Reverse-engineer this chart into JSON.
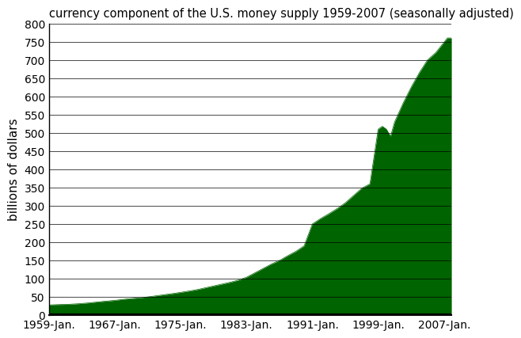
{
  "title": "currency component of the U.S. money supply 1959-2007 (seasonally adjusted)",
  "ylabel": "billions of dollars",
  "fill_color": "#006400",
  "background_color": "#ffffff",
  "ylim": [
    0,
    800
  ],
  "yticks": [
    0,
    50,
    100,
    150,
    200,
    250,
    300,
    350,
    400,
    450,
    500,
    550,
    600,
    650,
    700,
    750,
    800
  ],
  "xtick_years": [
    1959,
    1967,
    1975,
    1983,
    1991,
    1999,
    2007
  ],
  "xtick_labels": [
    "1959-Jan.",
    "1967-Jan.",
    "1975-Jan.",
    "1983-Jan.",
    "1991-Jan.",
    "1999-Jan.",
    "2007-Jan."
  ],
  "title_fontsize": 10.5,
  "ylabel_fontsize": 11,
  "tick_fontsize": 10,
  "known_years": [
    1959,
    1960,
    1961,
    1962,
    1963,
    1964,
    1965,
    1966,
    1967,
    1968,
    1969,
    1970,
    1971,
    1972,
    1973,
    1974,
    1975,
    1976,
    1977,
    1978,
    1979,
    1980,
    1981,
    1982,
    1983,
    1984,
    1985,
    1986,
    1987,
    1988,
    1989,
    1990,
    1991,
    1992,
    1993,
    1994,
    1995,
    1996,
    1997,
    1998,
    1999.0,
    1999.5,
    2000.0,
    2000.5,
    2001,
    2002,
    2003,
    2004,
    2005,
    2006,
    2007.4
  ],
  "known_values": [
    28.0,
    29.0,
    29.5,
    30.5,
    32.0,
    34.0,
    36.5,
    38.5,
    40.5,
    43.5,
    45.5,
    47.5,
    50.0,
    53.0,
    56.0,
    59.0,
    62.5,
    66.0,
    70.0,
    75.0,
    80.0,
    85.0,
    90.0,
    96.0,
    104.0,
    116.0,
    128.0,
    140.0,
    150.0,
    163.0,
    175.0,
    190.0,
    250.0,
    265.0,
    278.0,
    292.0,
    308.0,
    328.0,
    348.0,
    360.0,
    510.0,
    518.0,
    510.0,
    490.0,
    530.0,
    580.0,
    625.0,
    665.0,
    700.0,
    720.0,
    760.0
  ],
  "xlim_start": 1959.0,
  "xlim_end": 2007.9
}
